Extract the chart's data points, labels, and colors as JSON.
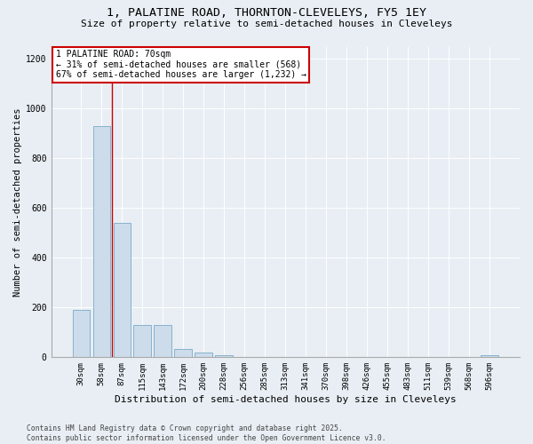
{
  "title1": "1, PALATINE ROAD, THORNTON-CLEVELEYS, FY5 1EY",
  "title2": "Size of property relative to semi-detached houses in Cleveleys",
  "xlabel": "Distribution of semi-detached houses by size in Cleveleys",
  "ylabel": "Number of semi-detached properties",
  "categories": [
    "30sqm",
    "58sqm",
    "87sqm",
    "115sqm",
    "143sqm",
    "172sqm",
    "200sqm",
    "228sqm",
    "256sqm",
    "285sqm",
    "313sqm",
    "341sqm",
    "370sqm",
    "398sqm",
    "426sqm",
    "455sqm",
    "483sqm",
    "511sqm",
    "539sqm",
    "568sqm",
    "596sqm"
  ],
  "values": [
    190,
    930,
    540,
    130,
    130,
    35,
    20,
    10,
    0,
    0,
    0,
    0,
    0,
    0,
    0,
    0,
    0,
    0,
    0,
    0,
    10
  ],
  "bar_color": "#cddceb",
  "bar_edge_color": "#7aaac8",
  "vline_x_index": 1.5,
  "vline_color": "#cc0000",
  "annotation_text": "1 PALATINE ROAD: 70sqm\n← 31% of semi-detached houses are smaller (568)\n67% of semi-detached houses are larger (1,232) →",
  "annotation_box_color": "#ffffff",
  "annotation_box_edge": "#cc0000",
  "ylim": [
    0,
    1250
  ],
  "yticks": [
    0,
    200,
    400,
    600,
    800,
    1000,
    1200
  ],
  "footer": "Contains HM Land Registry data © Crown copyright and database right 2025.\nContains public sector information licensed under the Open Government Licence v3.0.",
  "background_color": "#e8eef4",
  "plot_bg_color": "#e8eef4",
  "title_fontsize": 9.5,
  "subtitle_fontsize": 8,
  "tick_fontsize": 6.5,
  "ylabel_fontsize": 7.5,
  "xlabel_fontsize": 8,
  "footer_fontsize": 5.8,
  "annot_fontsize": 7
}
